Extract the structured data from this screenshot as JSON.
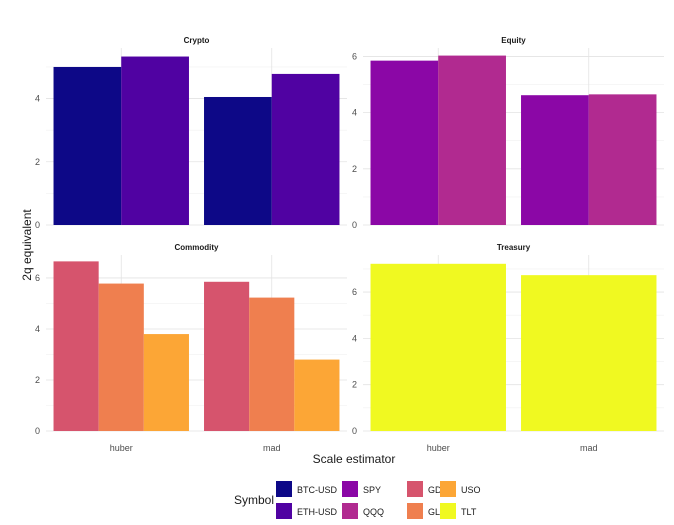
{
  "chart_data": {
    "type": "bar",
    "layout": "facet-grid-2x2",
    "xlabel": "Scale estimator",
    "ylabel": "2q equivalent",
    "legend": {
      "title": "Symbol",
      "position": "bottom",
      "entries": [
        {
          "name": "BTC-USD",
          "color": "#0d0887"
        },
        {
          "name": "ETH-USD",
          "color": "#5002a2"
        },
        {
          "name": "SPY",
          "color": "#8b07a6"
        },
        {
          "name": "QQQ",
          "color": "#b12a90"
        },
        {
          "name": "GDX",
          "color": "#d6546d"
        },
        {
          "name": "GLD",
          "color": "#ef7f4f"
        },
        {
          "name": "USO",
          "color": "#fca636"
        },
        {
          "name": "TLT",
          "color": "#f0f921"
        }
      ]
    },
    "panels": [
      {
        "title": "Crypto",
        "categories": [
          "huber",
          "mad"
        ],
        "ylim": [
          0,
          5.6
        ],
        "yticks": [
          0,
          2,
          4
        ],
        "series": [
          {
            "name": "BTC-USD",
            "values": [
              5.0,
              4.05
            ]
          },
          {
            "name": "ETH-USD",
            "values": [
              5.33,
              4.78
            ]
          }
        ]
      },
      {
        "title": "Equity",
        "categories": [
          "huber",
          "mad"
        ],
        "ylim": [
          0,
          6.3
        ],
        "yticks": [
          0,
          2,
          4,
          6
        ],
        "series": [
          {
            "name": "SPY",
            "values": [
              5.85,
              4.62
            ]
          },
          {
            "name": "QQQ",
            "values": [
              6.03,
              4.65
            ]
          }
        ]
      },
      {
        "title": "Commodity",
        "categories": [
          "huber",
          "mad"
        ],
        "ylim": [
          0,
          6.9
        ],
        "yticks": [
          0,
          2,
          4,
          6
        ],
        "series": [
          {
            "name": "GDX",
            "values": [
              6.65,
              5.85
            ]
          },
          {
            "name": "GLD",
            "values": [
              5.78,
              5.23
            ]
          },
          {
            "name": "USO",
            "values": [
              3.8,
              2.8
            ]
          }
        ]
      },
      {
        "title": "Treasury",
        "categories": [
          "huber",
          "mad"
        ],
        "ylim": [
          0,
          7.6
        ],
        "yticks": [
          0,
          2,
          4,
          6
        ],
        "series": [
          {
            "name": "TLT",
            "values": [
              7.22,
              6.73
            ]
          }
        ]
      }
    ]
  }
}
